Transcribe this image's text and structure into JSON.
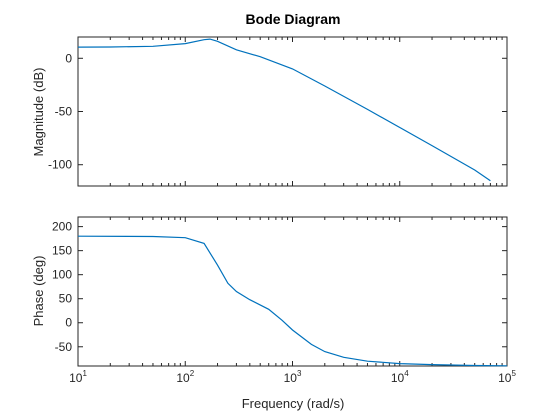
{
  "chart_data": {
    "type": "line",
    "title": "Bode Diagram",
    "xlabel": "Frequency (rad/s)",
    "xscale": "log",
    "xlim": [
      10,
      100000
    ],
    "x_ticks": [
      {
        "base": "10",
        "exp": "1",
        "value": 10
      },
      {
        "base": "10",
        "exp": "2",
        "value": 100
      },
      {
        "base": "10",
        "exp": "3",
        "value": 1000
      },
      {
        "base": "10",
        "exp": "4",
        "value": 10000
      },
      {
        "base": "10",
        "exp": "5",
        "value": 100000
      }
    ],
    "line_color": "#0072BD",
    "subplots": [
      {
        "id": "magnitude",
        "ylabel": "Magnitude (dB)",
        "ylim": [
          -120,
          20
        ],
        "yticks": [
          0,
          -50,
          -100
        ],
        "ytick_labels": [
          "0",
          "-50",
          "-100"
        ],
        "x": [
          10,
          20,
          50,
          100,
          150,
          170,
          200,
          300,
          500,
          1000,
          2000,
          5000,
          10000,
          20000,
          50000,
          70000
        ],
        "y": [
          10.5,
          10.6,
          11.3,
          13.8,
          17.5,
          18.0,
          16.0,
          8.0,
          1.5,
          -10.0,
          -26.0,
          -48.0,
          -65.0,
          -82.0,
          -105.0,
          -115.0
        ]
      },
      {
        "id": "phase",
        "ylabel": "Phase (deg)",
        "ylim": [
          -90,
          220
        ],
        "yticks": [
          200,
          150,
          100,
          50,
          0,
          -50
        ],
        "ytick_labels": [
          "200",
          "150",
          "100",
          "50",
          "0",
          "-50"
        ],
        "x": [
          10,
          50,
          100,
          150,
          200,
          250,
          300,
          400,
          600,
          800,
          1000,
          1500,
          2000,
          3000,
          5000,
          10000,
          20000,
          50000,
          100000
        ],
        "y": [
          180,
          179.5,
          177,
          165,
          120,
          82,
          65,
          48,
          28,
          5,
          -15,
          -45,
          -60,
          -72,
          -80,
          -85,
          -87,
          -89,
          -89.5
        ]
      }
    ]
  }
}
